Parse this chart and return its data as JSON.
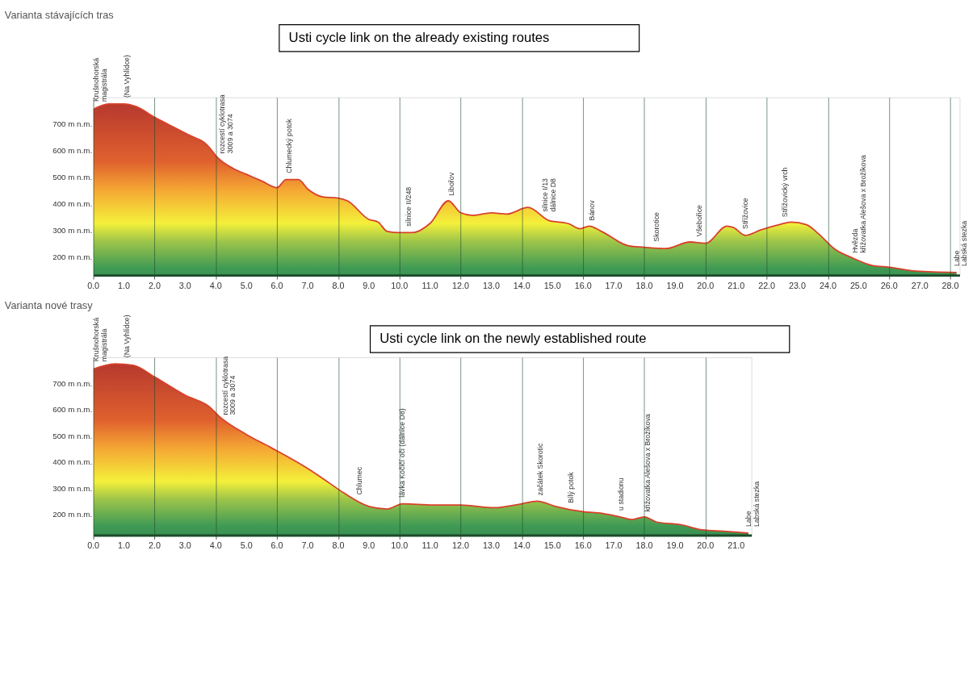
{
  "chart_data": [
    {
      "type": "area",
      "title": "Varianta stávajících tras",
      "color": "#d9412b",
      "grid": "x",
      "x": [
        0,
        0.5,
        1.0,
        1.4,
        2.0,
        3.0,
        3.8,
        4.0,
        4.6,
        5.0,
        5.5,
        6.0,
        6.3,
        6.7,
        7.0,
        7.5,
        8.0,
        8.3,
        9.0,
        9.3,
        9.6,
        10.0,
        10.4,
        11.0,
        11.6,
        12.0,
        12.4,
        13.0,
        13.5,
        14.2,
        14.9,
        15.5,
        15.9,
        16.2,
        16.6,
        17.5,
        18.0,
        18.7,
        19.5,
        20.0,
        20.7,
        20.9,
        21.3,
        21.8,
        22.4,
        22.8,
        23.3,
        23.7,
        24.2,
        24.8,
        25.5,
        26.0,
        26.9,
        28.2
      ],
      "values": [
        755,
        775,
        775,
        765,
        725,
        665,
        610,
        580,
        530,
        510,
        485,
        460,
        490,
        490,
        455,
        425,
        420,
        410,
        340,
        330,
        295,
        290,
        290,
        325,
        410,
        365,
        355,
        365,
        360,
        385,
        335,
        325,
        305,
        315,
        295,
        240,
        235,
        230,
        255,
        250,
        315,
        310,
        280,
        300,
        320,
        330,
        320,
        285,
        230,
        195,
        165,
        160,
        145,
        140
      ],
      "xlim": [
        0,
        28.3
      ],
      "ylim": [
        130,
        800
      ],
      "xticks": [
        {
          "value": 0,
          "label": "0.0"
        },
        {
          "value": 1,
          "label": "1.0"
        },
        {
          "value": 2,
          "label": "2.0"
        },
        {
          "value": 3,
          "label": "3.0"
        },
        {
          "value": 4,
          "label": "4.0"
        },
        {
          "value": 5,
          "label": "5.0"
        },
        {
          "value": 6,
          "label": "6.0"
        },
        {
          "value": 7,
          "label": "7.0"
        },
        {
          "value": 8,
          "label": "8.0"
        },
        {
          "value": 9,
          "label": "9.0"
        },
        {
          "value": 10,
          "label": "10.0"
        },
        {
          "value": 11,
          "label": "11.0"
        },
        {
          "value": 12,
          "label": "12.0"
        },
        {
          "value": 13,
          "label": "13.0"
        },
        {
          "value": 14,
          "label": "14.0"
        },
        {
          "value": 15,
          "label": "15.0"
        },
        {
          "value": 16,
          "label": "16.0"
        },
        {
          "value": 17,
          "label": "17.0"
        },
        {
          "value": 18,
          "label": "18.0"
        },
        {
          "value": 19,
          "label": "19.0"
        },
        {
          "value": 20,
          "label": "20.0"
        },
        {
          "value": 21,
          "label": "21.0"
        },
        {
          "value": 22,
          "label": "22.0"
        },
        {
          "value": 23,
          "label": "23.0"
        },
        {
          "value": 24,
          "label": "24.0"
        },
        {
          "value": 25,
          "label": "25.0"
        },
        {
          "value": 26,
          "label": "26.0"
        },
        {
          "value": 27,
          "label": "27.0"
        },
        {
          "value": 28,
          "label": "28.0"
        }
      ],
      "yticks": [
        {
          "value": 200,
          "label": "200 m n.m."
        },
        {
          "value": 300,
          "label": "300 m n.m."
        },
        {
          "value": 400,
          "label": "400 m n.m."
        },
        {
          "value": 500,
          "label": "500 m n.m."
        },
        {
          "value": 600,
          "label": "600 m n.m."
        },
        {
          "value": 700,
          "label": "700 m n.m."
        }
      ],
      "annotations": [
        "Usti cycle link on the already existing routes",
        {
          "text": "Krušnohorská\nmagistrála",
          "x": 0.1,
          "y": 760
        },
        {
          "text": "(Na Vyhlídce)",
          "x": 1.1,
          "y": 775
        },
        {
          "text": "rozcestí cyklotrasa\n3009 a 3074",
          "x": 4.2,
          "y": 565
        },
        {
          "text": "Chlumecký potok",
          "x": 6.4,
          "y": 490
        },
        {
          "text": "silnice II/248",
          "x": 10.3,
          "y": 290
        },
        {
          "text": "Libořov",
          "x": 11.7,
          "y": 405
        },
        {
          "text": "silnice I/13\ndálnice D8",
          "x": 14.75,
          "y": 345
        },
        {
          "text": "Bánov",
          "x": 16.3,
          "y": 312
        },
        {
          "text": "Skorotice",
          "x": 18.4,
          "y": 232
        },
        {
          "text": "Všebořice",
          "x": 19.8,
          "y": 252
        },
        {
          "text": "Střížovice",
          "x": 21.3,
          "y": 280
        },
        {
          "text": "Střížovický vrch",
          "x": 22.6,
          "y": 325
        },
        {
          "text": "Hvězda\nkřižovatka Alešova x Brožíkova",
          "x": 24.9,
          "y": 190
        },
        {
          "text": "Labe\nLabská stezka",
          "x": 28.2,
          "y": 140
        }
      ]
    },
    {
      "type": "area",
      "title": "Varianta nové trasy",
      "color": "#d9412b",
      "grid": "x",
      "x": [
        0,
        0.7,
        1.3,
        2.0,
        3.0,
        3.8,
        4.1,
        5.0,
        5.8,
        7.0,
        7.7,
        8.2,
        9.0,
        9.6,
        10.1,
        11.1,
        12.0,
        13.1,
        14.0,
        14.5,
        15.1,
        16.0,
        16.5,
        17.2,
        17.6,
        18.0,
        18.4,
        19.2,
        19.9,
        20.6,
        21.4
      ],
      "values": [
        755,
        775,
        770,
        725,
        655,
        610,
        575,
        505,
        455,
        375,
        320,
        280,
        230,
        220,
        240,
        235,
        235,
        225,
        240,
        250,
        230,
        210,
        205,
        190,
        180,
        190,
        170,
        160,
        140,
        135,
        128
      ],
      "xlim": [
        0,
        21.5
      ],
      "ylim": [
        120,
        800
      ],
      "xticks": [
        {
          "value": 0,
          "label": "0.0"
        },
        {
          "value": 1,
          "label": "1.0"
        },
        {
          "value": 2,
          "label": "2.0"
        },
        {
          "value": 3,
          "label": "3.0"
        },
        {
          "value": 4,
          "label": "4.0"
        },
        {
          "value": 5,
          "label": "5.0"
        },
        {
          "value": 6,
          "label": "6.0"
        },
        {
          "value": 7,
          "label": "7.0"
        },
        {
          "value": 8,
          "label": "8.0"
        },
        {
          "value": 9,
          "label": "9.0"
        },
        {
          "value": 10,
          "label": "10.0"
        },
        {
          "value": 11,
          "label": "11.0"
        },
        {
          "value": 12,
          "label": "12.0"
        },
        {
          "value": 13,
          "label": "13.0"
        },
        {
          "value": 14,
          "label": "14.0"
        },
        {
          "value": 15,
          "label": "15.0"
        },
        {
          "value": 16,
          "label": "16.0"
        },
        {
          "value": 17,
          "label": "17.0"
        },
        {
          "value": 18,
          "label": "18.0"
        },
        {
          "value": 19,
          "label": "19.0"
        },
        {
          "value": 20,
          "label": "20.0"
        },
        {
          "value": 21,
          "label": "21.0"
        }
      ],
      "yticks": [
        {
          "value": 200,
          "label": "200 m n.m."
        },
        {
          "value": 300,
          "label": "300 m n.m."
        },
        {
          "value": 400,
          "label": "400 m n.m."
        },
        {
          "value": 500,
          "label": "500 m n.m."
        },
        {
          "value": 600,
          "label": "600 m n.m."
        },
        {
          "value": 700,
          "label": "700 m n.m."
        }
      ],
      "annotations": [
        "Usti cycle link on the newly established route",
        {
          "text": "Krušnohorská\nmagistrála",
          "x": 0.1,
          "y": 760
        },
        {
          "text": "(Na Vyhlídce)",
          "x": 1.1,
          "y": 775
        },
        {
          "text": "rozcestí cyklotrasa\n3009 a 3074",
          "x": 4.3,
          "y": 555
        },
        {
          "text": "Chlumec",
          "x": 8.7,
          "y": 250
        },
        {
          "text": "lávka Kočičí oči (dálnice D8)",
          "x": 10.1,
          "y": 240
        },
        {
          "text": "začátek Skorotic",
          "x": 14.6,
          "y": 248
        },
        {
          "text": "Bílý potok",
          "x": 15.6,
          "y": 218
        },
        {
          "text": "u stadionu",
          "x": 17.25,
          "y": 190
        },
        {
          "text": "křižovatka Alešova x Brožíkova",
          "x": 18.1,
          "y": 185
        },
        {
          "text": "Labe\nLabská stezka",
          "x": 21.4,
          "y": 128
        }
      ]
    }
  ]
}
